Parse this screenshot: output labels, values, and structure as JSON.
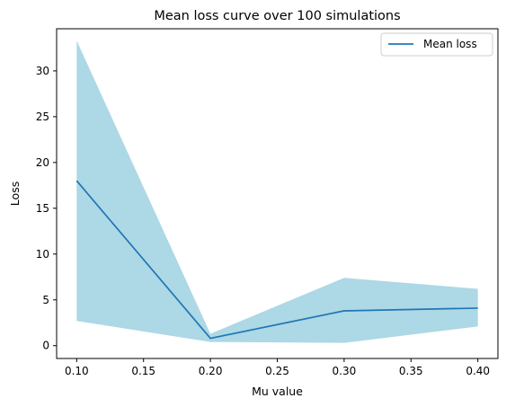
{
  "chart_data": {
    "type": "line",
    "title": "Mean loss curve over 100 simulations",
    "xlabel": "Mu value",
    "ylabel": "Loss",
    "x": [
      0.1,
      0.2,
      0.3,
      0.4
    ],
    "x_tick_labels": [
      "0.10",
      "0.15",
      "0.20",
      "0.25",
      "0.30",
      "0.35",
      "0.40"
    ],
    "x_ticks": [
      0.1,
      0.15,
      0.2,
      0.25,
      0.3,
      0.35,
      0.4
    ],
    "y_ticks": [
      0,
      5,
      10,
      15,
      20,
      25,
      30
    ],
    "y_tick_labels": [
      "0",
      "5",
      "10",
      "15",
      "20",
      "25",
      "30"
    ],
    "xlim": [
      0.085,
      0.415
    ],
    "ylim": [
      -1.4,
      34.6
    ],
    "series": [
      {
        "name": "Mean loss",
        "values": [
          18.0,
          0.8,
          3.8,
          4.1
        ],
        "color": "#1f77b4"
      }
    ],
    "band": {
      "upper": [
        33.3,
        1.3,
        7.4,
        6.2
      ],
      "lower": [
        2.7,
        0.4,
        0.3,
        2.1
      ],
      "color": "#add8e6"
    },
    "legend_position": "top-right",
    "grid": false
  }
}
